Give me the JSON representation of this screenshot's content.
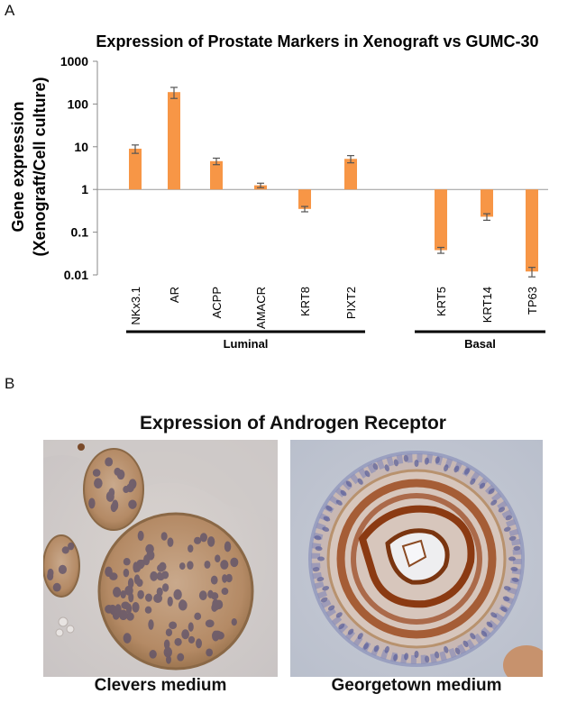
{
  "panel_a": {
    "letter": "A"
  },
  "panel_b": {
    "letter": "B",
    "title": "Expression of Androgen Receptor",
    "images": [
      {
        "caption": "Clevers medium"
      },
      {
        "caption": "Georgetown medium"
      }
    ]
  },
  "chart_data": {
    "type": "bar",
    "title": "Expression of Prostate Markers in Xenograft vs GUMC-30",
    "ylabel_line1": "Gene expression",
    "ylabel_line2": "(Xenograft/Cell culture)",
    "xlabel": "",
    "yscale": "log",
    "ylim": [
      0.01,
      1000
    ],
    "baseline": 1,
    "yticks": [
      "0.01",
      "0.1",
      "1",
      "10",
      "100",
      "1000"
    ],
    "categories": [
      "NKx3.1",
      "AR",
      "ACPP",
      "AMACR",
      "KRT8",
      "PIXT2",
      "KRT5",
      "KRT14",
      "TP63"
    ],
    "values": [
      9,
      190,
      4.6,
      1.25,
      0.35,
      5.2,
      0.038,
      0.23,
      0.012
    ],
    "error": [
      2,
      55,
      0.8,
      0.15,
      0.05,
      1.0,
      0.006,
      0.04,
      0.003
    ],
    "groups": [
      {
        "label": "Luminal",
        "members": [
          "NKx3.1",
          "AR",
          "ACPP",
          "AMACR",
          "KRT8",
          "PIXT2"
        ]
      },
      {
        "label": "Basal",
        "members": [
          "KRT5",
          "KRT14",
          "TP63"
        ]
      }
    ],
    "bar_color": "#f79646",
    "grid": false
  }
}
